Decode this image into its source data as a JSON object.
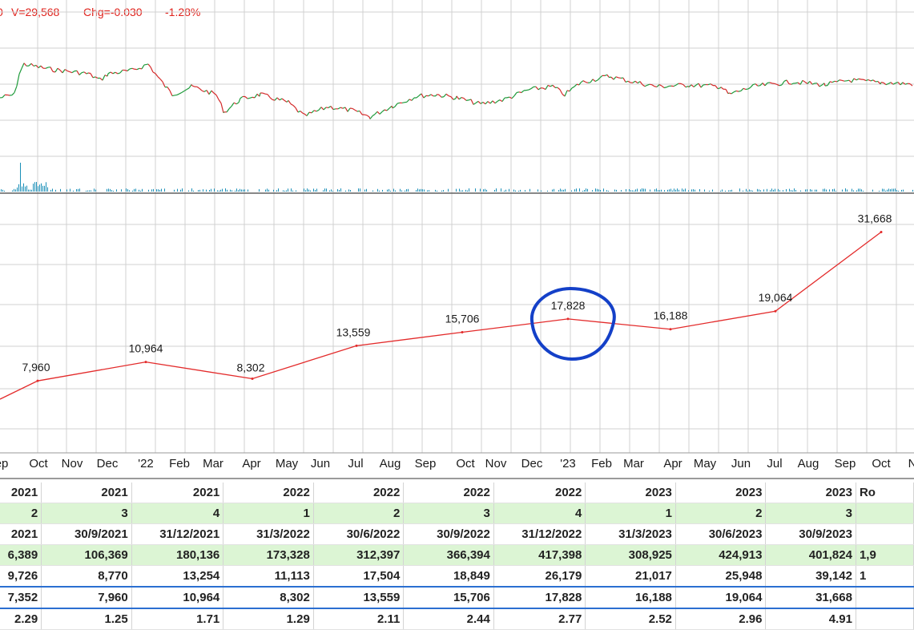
{
  "stats": {
    "prefix": "0",
    "volume": "V=29,568",
    "change": "Chg=-0.030",
    "change_pct": "-1.28%"
  },
  "colors": {
    "line": "#e32b2b",
    "volume": "#1a8fb8",
    "circle": "#1440c8",
    "grid": "#d0d0d0",
    "row_green": "#dcf5d4"
  },
  "chart_data": {
    "type": "line",
    "x_ticks": [
      "ep",
      "Oct",
      "Nov",
      "Dec",
      "'22",
      "Feb",
      "Mar",
      "Apr",
      "May",
      "Jun",
      "Jul",
      "Aug",
      "Sep",
      "Oct",
      "Nov",
      "Dec",
      "'23",
      "Feb",
      "Mar",
      "Apr",
      "May",
      "Jun",
      "Jul",
      "Aug",
      "Sep",
      "Oct",
      "N"
    ],
    "series": [
      {
        "x": [
          "30/9/2021",
          "31/12/2021",
          "31/3/2022",
          "30/6/2022",
          "30/9/2022",
          "31/12/2022",
          "31/3/2023",
          "30/6/2023",
          "30/9/2023"
        ],
        "values": [
          7960,
          10964,
          8302,
          13559,
          15706,
          17828,
          16188,
          19064,
          31668
        ],
        "labels": [
          "7,960",
          "10,964",
          "8,302",
          "13,559",
          "15,706",
          "17,828",
          "16,188",
          "19,064",
          "31,668"
        ]
      }
    ],
    "annotation": "circle around 17,828"
  },
  "table": {
    "columns": [
      {
        "h": "2021",
        "q": "2",
        "d": "2021",
        "r1": "6,389",
        "r2": "9,726",
        "r3": "7,352",
        "r4": "2.29"
      },
      {
        "h": "2021",
        "q": "3",
        "d": "30/9/2021",
        "r1": "106,369",
        "r2": "8,770",
        "r3": "7,960",
        "r4": "1.25"
      },
      {
        "h": "2021",
        "q": "4",
        "d": "31/12/2021",
        "r1": "180,136",
        "r2": "13,254",
        "r3": "10,964",
        "r4": "1.71"
      },
      {
        "h": "2022",
        "q": "1",
        "d": "31/3/2022",
        "r1": "173,328",
        "r2": "11,113",
        "r3": "8,302",
        "r4": "1.29"
      },
      {
        "h": "2022",
        "q": "2",
        "d": "30/6/2022",
        "r1": "312,397",
        "r2": "17,504",
        "r3": "13,559",
        "r4": "2.11"
      },
      {
        "h": "2022",
        "q": "3",
        "d": "30/9/2022",
        "r1": "366,394",
        "r2": "18,849",
        "r3": "15,706",
        "r4": "2.44"
      },
      {
        "h": "2022",
        "q": "4",
        "d": "31/12/2022",
        "r1": "417,398",
        "r2": "26,179",
        "r3": "17,828",
        "r4": "2.77"
      },
      {
        "h": "2023",
        "q": "1",
        "d": "31/3/2023",
        "r1": "308,925",
        "r2": "21,017",
        "r3": "16,188",
        "r4": "2.52"
      },
      {
        "h": "2023",
        "q": "2",
        "d": "30/6/2023",
        "r1": "424,913",
        "r2": "25,948",
        "r3": "19,064",
        "r4": "2.96"
      },
      {
        "h": "2023",
        "q": "3",
        "d": "30/9/2023",
        "r1": "401,824",
        "r2": "39,142",
        "r3": "31,668",
        "r4": "4.91"
      },
      {
        "h": "Ro",
        "q": "",
        "d": "",
        "r1": "1,9",
        "r2": "1",
        "r3": "",
        "r4": ""
      }
    ]
  }
}
